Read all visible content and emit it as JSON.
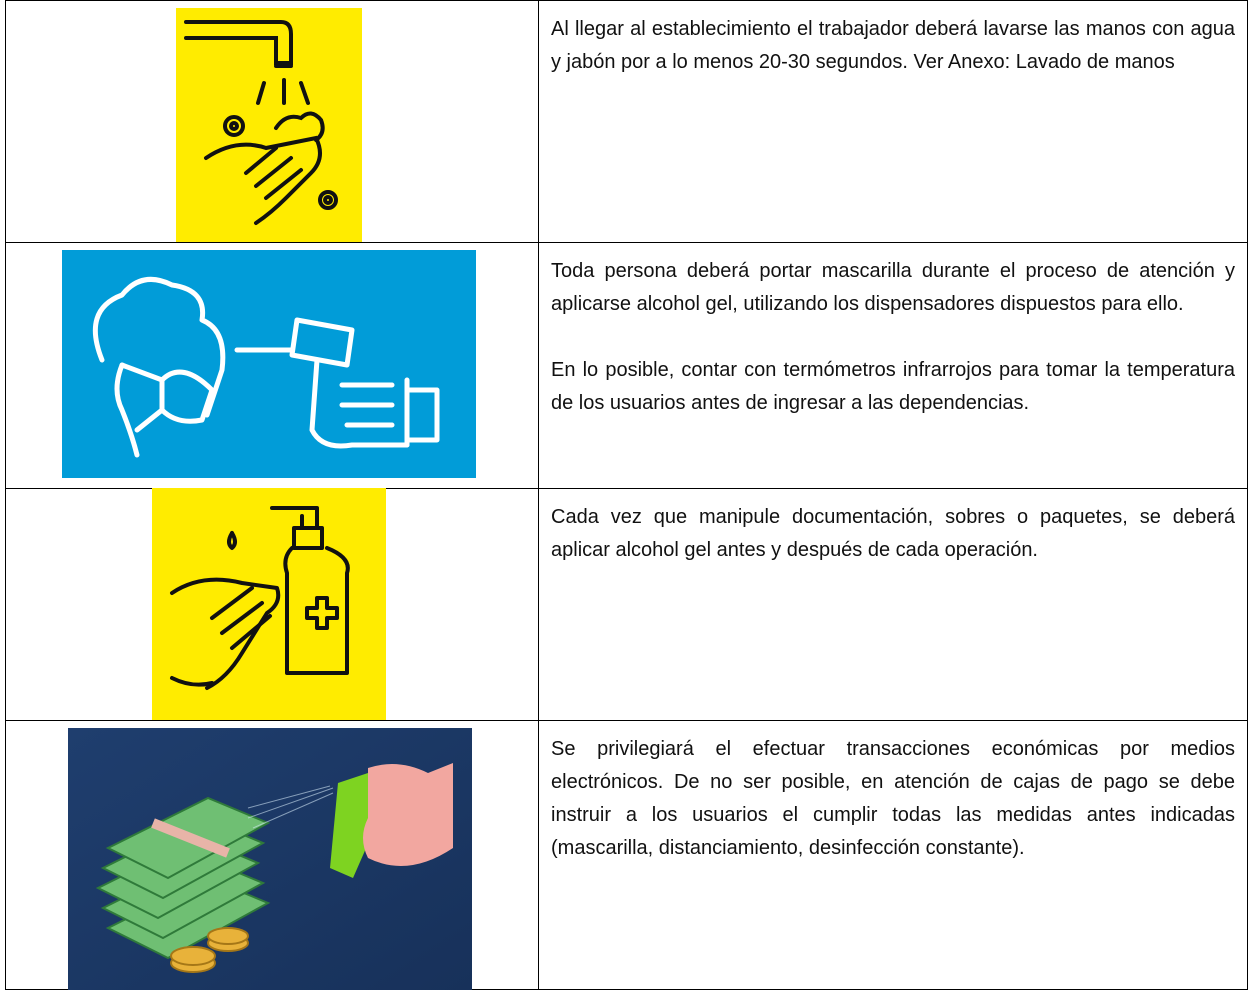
{
  "rows": [
    {
      "paragraphs": [
        "Al llegar al establecimiento el trabajador deberá lavarse las manos con agua y jabón por a lo menos 20-30 segundos. Ver Anexo: Lavado de manos"
      ]
    },
    {
      "paragraphs": [
        "Toda persona deberá portar mascarilla durante el proceso de atención y aplicarse alcohol gel, utilizando los dispensadores dispuestos para ello.",
        "En lo posible, contar con termómetros infrarrojos para tomar la temperatura de los usuarios antes de ingresar a las dependencias."
      ]
    },
    {
      "paragraphs": [
        "Cada vez que manipule documentación, sobres o paquetes, se deberá aplicar alcohol gel antes y después de cada operación."
      ]
    },
    {
      "paragraphs": [
        "Se privilegiará el efectuar transacciones económicas por medios electrónicos. De no ser posible, en atención de cajas de pago se debe instruir a los usuarios el cumplir todas las medidas antes indicadas (mascarilla, distanciamiento, desinfección constante)."
      ]
    }
  ]
}
